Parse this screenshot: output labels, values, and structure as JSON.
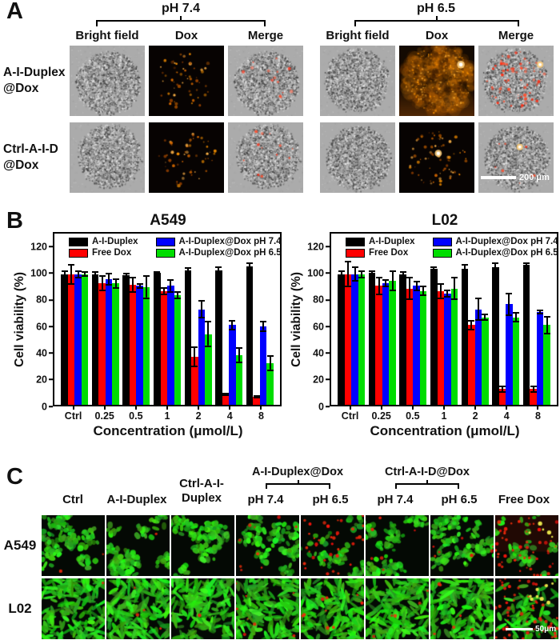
{
  "panelA": {
    "label": "A",
    "groups": [
      {
        "ph": "pH 7.4"
      },
      {
        "ph": "pH 6.5"
      }
    ],
    "col_headers": [
      "Bright field",
      "Dox",
      "Merge"
    ],
    "rows": [
      {
        "label_line1": "A-I-Duplex",
        "label_line2": "@Dox",
        "tiles": [
          {
            "name": "brightfield-spheroid-ph74-aiduplex",
            "kind": "brightfield"
          },
          {
            "name": "dox-fluorescence-ph74-aiduplex",
            "kind": "dox_specks",
            "specks": 60
          },
          {
            "name": "merge-ph74-aiduplex",
            "kind": "merge",
            "red_specks": 14
          },
          {
            "name": "brightfield-spheroid-ph65-aiduplex",
            "kind": "brightfield"
          },
          {
            "name": "dox-fluorescence-ph65-aiduplex",
            "kind": "dox_glow",
            "spot": [
              0.82,
              0.27
            ]
          },
          {
            "name": "merge-ph65-aiduplex",
            "kind": "merge",
            "red_specks": 70,
            "spot": [
              0.82,
              0.27
            ]
          }
        ]
      },
      {
        "label_line1": "Ctrl-A-I-D",
        "label_line2": "@Dox",
        "tiles": [
          {
            "name": "brightfield-spheroid-ph74-ctrl",
            "kind": "brightfield"
          },
          {
            "name": "dox-fluorescence-ph74-ctrl",
            "kind": "dox_specks",
            "specks": 55
          },
          {
            "name": "merge-ph74-ctrl",
            "kind": "merge",
            "red_specks": 12
          },
          {
            "name": "brightfield-spheroid-ph65-ctrl",
            "kind": "brightfield"
          },
          {
            "name": "dox-fluorescence-ph65-ctrl",
            "kind": "dox_specks",
            "specks": 75,
            "spot": [
              0.52,
              0.44
            ]
          },
          {
            "name": "merge-ph65-ctrl",
            "kind": "merge",
            "red_specks": 8,
            "spot": [
              0.55,
              0.35
            ],
            "has_scale_bar": true
          }
        ]
      }
    ],
    "scale_bar": "200 μm"
  },
  "panelB": {
    "label": "B"
  },
  "chart_data": [
    {
      "type": "bar",
      "title": "A549",
      "xlabel": "Concentration (μmol/L)",
      "ylabel": "Cell viability (%)",
      "ylim": [
        0,
        131
      ],
      "yticks": [
        0,
        20,
        40,
        60,
        80,
        100,
        120
      ],
      "grid": false,
      "legend_position": "top-inside",
      "categories": [
        "Ctrl",
        "0.25",
        "0.5",
        "1",
        "2",
        "4",
        "8"
      ],
      "series": [
        {
          "name": "A-I-Duplex",
          "color": "#000000",
          "values": [
            100,
            100,
            99,
            101,
            103,
            103,
            106
          ],
          "errors": [
            3,
            2,
            2,
            1,
            2,
            3,
            3
          ]
        },
        {
          "name": "Free Dox",
          "color": "#ff0000",
          "values": [
            100,
            93,
            92,
            87,
            37,
            8,
            6
          ],
          "errors": [
            8,
            6,
            6,
            3,
            8,
            1,
            1
          ]
        },
        {
          "name": "A-I-Duplex@Dox pH 7.4",
          "color": "#0000ff",
          "values": [
            100,
            96,
            91,
            91,
            73,
            61,
            60
          ],
          "errors": [
            3,
            5,
            2,
            5,
            7,
            4,
            4
          ]
        },
        {
          "name": "A-I-Duplex@Dox pH 6.5",
          "color": "#00dd00",
          "values": [
            100,
            93,
            90,
            84,
            54,
            38,
            32
          ],
          "errors": [
            2,
            4,
            9,
            3,
            10,
            6,
            6
          ]
        }
      ]
    },
    {
      "type": "bar",
      "title": "L02",
      "xlabel": "Concentration (μmol/L)",
      "ylabel": "Cell viability (%)",
      "ylim": [
        0,
        131
      ],
      "yticks": [
        0,
        20,
        40,
        60,
        80,
        100,
        120
      ],
      "grid": false,
      "legend_position": "top-inside",
      "categories": [
        "Ctrl",
        "0.25",
        "0.5",
        "1",
        "2",
        "4",
        "8"
      ],
      "series": [
        {
          "name": "A-I-Duplex",
          "color": "#000000",
          "values": [
            100,
            101,
            100,
            104,
            104,
            105,
            107
          ],
          "errors": [
            3,
            2,
            2,
            2,
            4,
            4,
            2
          ]
        },
        {
          "name": "Free Dox",
          "color": "#ff0000",
          "values": [
            100,
            91,
            89,
            87,
            61,
            12,
            12
          ],
          "errors": [
            10,
            7,
            9,
            6,
            4,
            3,
            3
          ]
        },
        {
          "name": "A-I-Duplex@Dox pH 7.4",
          "color": "#0000ff",
          "values": [
            100,
            93,
            91,
            85,
            73,
            77,
            71
          ],
          "errors": [
            6,
            3,
            4,
            3,
            9,
            9,
            2
          ]
        },
        {
          "name": "A-I-Duplex@Dox pH 6.5",
          "color": "#00dd00",
          "values": [
            100,
            95,
            87,
            89,
            67,
            67,
            61
          ],
          "errors": [
            3,
            8,
            4,
            9,
            3,
            4,
            7
          ]
        }
      ]
    }
  ],
  "panelC": {
    "label": "C",
    "row_labels": [
      "A549",
      "L02"
    ],
    "cols": {
      "c0": "Ctrl",
      "c1": "A-I-Duplex",
      "c2_line1": "Ctrl-A-I-",
      "c2_line2": "Duplex",
      "g1_label": "A-I-Duplex@Dox",
      "g1_sub1": "pH 7.4",
      "g1_sub2": "pH 6.5",
      "g2_label": "Ctrl-A-I-D@Dox",
      "g2_sub1": "pH 7.4",
      "g2_sub2": "pH 6.5",
      "c7": "Free Dox"
    },
    "rows": [
      {
        "shape": "round",
        "tiles": [
          {
            "name": "cells-a549-ctrl",
            "red": 2
          },
          {
            "name": "cells-a549-aiduplex",
            "red": 1
          },
          {
            "name": "cells-a549-ctrl-aid",
            "red": 0
          },
          {
            "name": "cells-a549-aid-dox-ph74",
            "red": 9
          },
          {
            "name": "cells-a549-aid-dox-ph65",
            "red": 38,
            "sparse": true
          },
          {
            "name": "cells-a549-ctrlaid-dox-ph74",
            "red": 6
          },
          {
            "name": "cells-a549-ctrlaid-dox-ph65",
            "red": 7
          },
          {
            "name": "cells-a549-freedox",
            "red": 48,
            "sparse": true,
            "tint": true,
            "yellow": 5
          }
        ]
      },
      {
        "shape": "long",
        "tiles": [
          {
            "name": "cells-l02-ctrl",
            "red": 1
          },
          {
            "name": "cells-l02-aiduplex",
            "red": 4
          },
          {
            "name": "cells-l02-ctrl-aid",
            "red": 1
          },
          {
            "name": "cells-l02-aid-dox-ph74",
            "red": 8
          },
          {
            "name": "cells-l02-aid-dox-ph65",
            "red": 9
          },
          {
            "name": "cells-l02-ctrlaid-dox-ph74",
            "red": 5
          },
          {
            "name": "cells-l02-ctrlaid-dox-ph65",
            "red": 6
          },
          {
            "name": "cells-l02-freedox",
            "red": 55,
            "sparse": true,
            "yellow": 8,
            "has_scale_bar": true
          }
        ]
      }
    ],
    "scale_bar": "50μm"
  }
}
